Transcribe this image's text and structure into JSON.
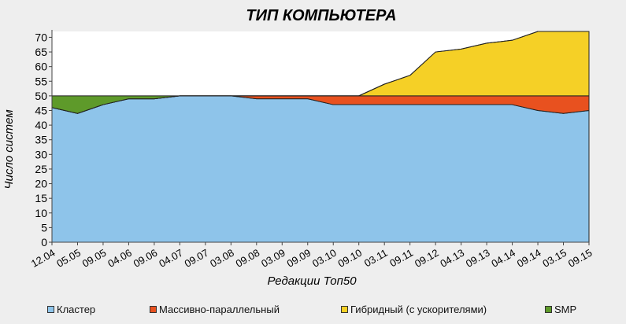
{
  "chart_data": {
    "type": "area",
    "stacked": true,
    "title": "ТИП КОМПЬЮТЕРА",
    "xlabel": "Редакции Топ50",
    "ylabel": "Число систем",
    "ylim": [
      0,
      72
    ],
    "yticks": [
      0,
      5,
      10,
      15,
      20,
      25,
      30,
      35,
      40,
      45,
      50,
      55,
      60,
      65,
      70
    ],
    "categories": [
      "12.04",
      "05.05",
      "09.05",
      "04.06",
      "09.06",
      "04.07",
      "09.07",
      "03.08",
      "09.08",
      "03.09",
      "09.09",
      "03.10",
      "09.10",
      "03.11",
      "09.11",
      "09.12",
      "04.13",
      "09.13",
      "04.14",
      "09.14",
      "03.15",
      "09.15"
    ],
    "series": [
      {
        "name": "Кластер",
        "color": "#8ec4ea",
        "values": [
          46,
          44,
          47,
          49,
          49,
          50,
          50,
          50,
          49,
          49,
          49,
          47,
          47,
          47,
          47,
          47,
          47,
          47,
          47,
          45,
          44,
          45
        ]
      },
      {
        "name": "Массивно-параллельный",
        "color": "#e8511f",
        "values": [
          0,
          0,
          0,
          0,
          0,
          0,
          0,
          0,
          1,
          1,
          1,
          3,
          3,
          3,
          3,
          3,
          3,
          3,
          3,
          5,
          6,
          5
        ]
      },
      {
        "name": "Гибридный (с ускорителями)",
        "color": "#f5d026",
        "values": [
          0,
          0,
          0,
          0,
          0,
          0,
          0,
          0,
          0,
          0,
          0,
          0,
          0,
          4,
          7,
          15,
          16,
          18,
          19,
          22,
          22,
          22
        ]
      },
      {
        "name": "SMP",
        "color": "#5e9a2a",
        "values": [
          4,
          6,
          3,
          1,
          1,
          0,
          0,
          0,
          0,
          0,
          0,
          0,
          0,
          0,
          0,
          0,
          0,
          0,
          0,
          0,
          0,
          0
        ]
      }
    ]
  }
}
